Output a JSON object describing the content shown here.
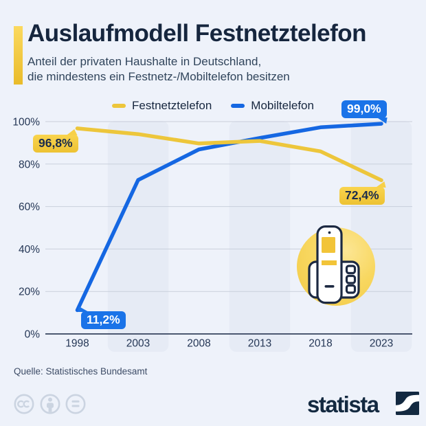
{
  "header": {
    "title": "Auslaufmodell Festnetztelefon",
    "subtitle_line1": "Anteil der privaten Haushalte in Deutschland,",
    "subtitle_line2": "die mindestens ein Festnetz-/Mobiltelefon besitzen"
  },
  "legend": {
    "festnetz_label": "Festnetztelefon",
    "mobil_label": "Mobiltelefon"
  },
  "chart_data": {
    "type": "line",
    "categories": [
      "1998",
      "2003",
      "2008",
      "2013",
      "2018",
      "2023"
    ],
    "series": [
      {
        "name": "Festnetztelefon",
        "color": "#edc63b",
        "values": [
          96.8,
          94.1,
          89.7,
          90.9,
          86.0,
          72.4
        ]
      },
      {
        "name": "Mobiltelefon",
        "color": "#1567e2",
        "values": [
          11.2,
          72.5,
          86.9,
          92.3,
          97.3,
          99.0
        ]
      }
    ],
    "y_ticks": [
      "0%",
      "20%",
      "40%",
      "60%",
      "80%",
      "100%"
    ],
    "ylim": [
      0,
      100
    ],
    "grid": "horizontal",
    "legend_position": "top",
    "point_labels": [
      {
        "series": "Festnetztelefon",
        "category": "1998",
        "label": "96,8%"
      },
      {
        "series": "Mobiltelefon",
        "category": "1998",
        "label": "11,2%"
      },
      {
        "series": "Mobiltelefon",
        "category": "2023",
        "label": "99,0%"
      },
      {
        "series": "Festnetztelefon",
        "category": "2023",
        "label": "72,4%"
      }
    ]
  },
  "footer": {
    "source": "Quelle: Statistisches Bundesamt",
    "brand": "statista",
    "license_icons": [
      "creative-commons-icon",
      "attribution-person-icon",
      "no-derivatives-equals-icon"
    ]
  },
  "icons": {
    "chart_decoration": "cordless-phone-icon",
    "brand_mark": "statista-swoosh-icon"
  },
  "colors": {
    "background": "#eef2fa",
    "column_band": "#e6ebf5",
    "accent_yellow": "#edc63b",
    "accent_blue": "#1567e2",
    "badge_blue": "#1a73e8",
    "badge_yellow": "#f6cd3f",
    "navy": "#16263e"
  }
}
